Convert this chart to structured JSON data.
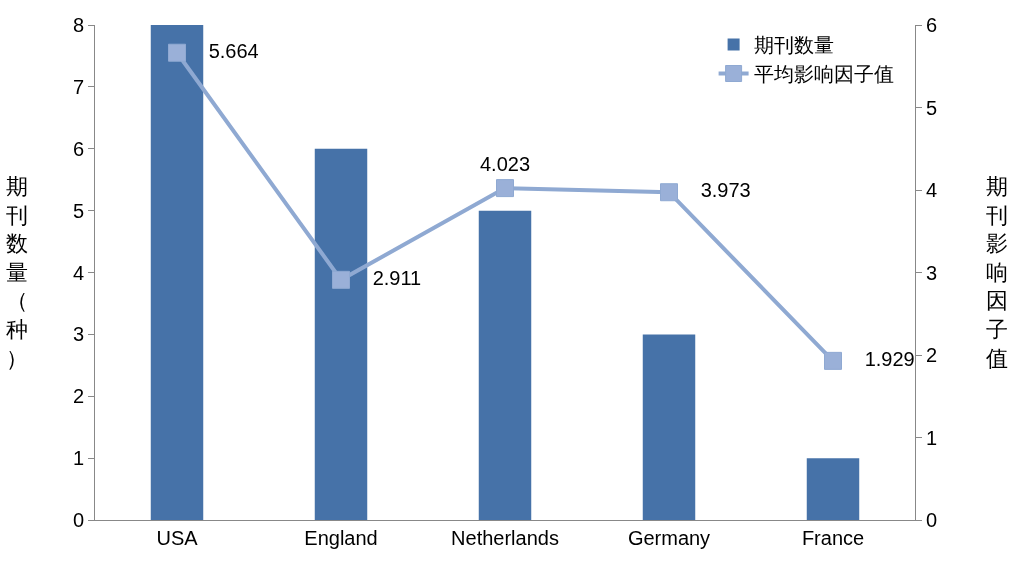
{
  "chart_data": {
    "type": "bar",
    "categories": [
      "USA",
      "England",
      "Netherlands",
      "Germany",
      "France"
    ],
    "ylabel": "期刊数量（种）",
    "y2label": "期刊影响因子值",
    "series": [
      {
        "name": "期刊数量",
        "color": "#4672a8",
        "values": [
          8,
          6,
          5,
          3,
          1
        ]
      },
      {
        "name": "平均影响因子值",
        "type": "line",
        "axis": "y2",
        "color": "#8fa9d2",
        "values": [
          5.664,
          2.911,
          4.023,
          3.973,
          1.929
        ],
        "value_labels": [
          "5.664",
          "2.911",
          "4.023",
          "3.973",
          "1.929"
        ]
      }
    ],
    "ylim": [
      0,
      8
    ],
    "yticks": [
      0,
      1,
      2,
      3,
      4,
      5,
      6,
      7,
      8
    ],
    "y2lim": [
      0,
      6
    ],
    "y2ticks": [
      0,
      1,
      2,
      3,
      4,
      5,
      6
    ],
    "marker": "square",
    "line_style": "solid",
    "grid": false,
    "legend": "top right"
  }
}
